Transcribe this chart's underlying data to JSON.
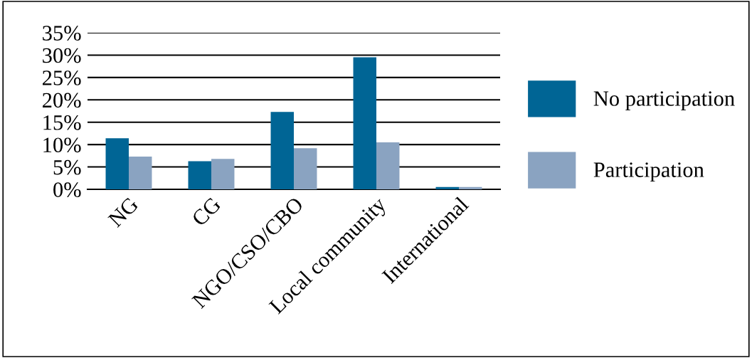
{
  "chart_data": {
    "type": "bar",
    "categories": [
      "NG",
      "CG",
      "NGO/CSO/CBO",
      "Local community",
      "International"
    ],
    "series": [
      {
        "name": "No participation",
        "color": "#006595",
        "values": [
          11.4,
          6.3,
          17.3,
          29.5,
          0.5
        ]
      },
      {
        "name": "Participation",
        "color": "#8aa3c1",
        "values": [
          7.3,
          6.8,
          9.2,
          10.5,
          0.5
        ]
      }
    ],
    "ylim": [
      0,
      35
    ],
    "yticks": [
      {
        "value": 0,
        "label": "0%"
      },
      {
        "value": 5,
        "label": "5%"
      },
      {
        "value": 10,
        "label": "10%"
      },
      {
        "value": 15,
        "label": "15%"
      },
      {
        "value": 20,
        "label": "20%"
      },
      {
        "value": 25,
        "label": "25%"
      },
      {
        "value": 30,
        "label": "30%"
      },
      {
        "value": 35,
        "label": "35%"
      }
    ],
    "grid": "y",
    "legend": "right"
  }
}
